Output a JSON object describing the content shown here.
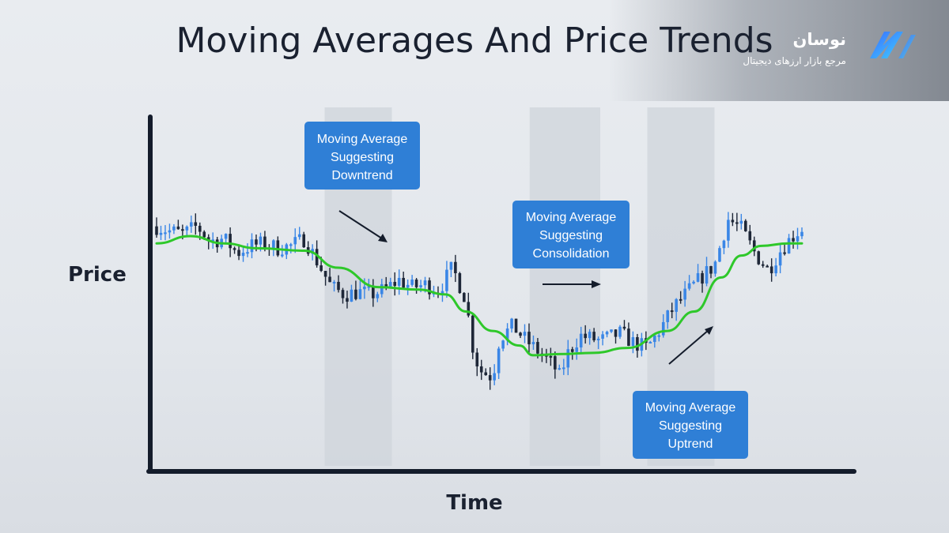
{
  "brand": {
    "name": "نوسان",
    "tagline": "مرجع بازار ارزهای دیجیتال",
    "logo": "nosan-logo"
  },
  "chart_data": {
    "type": "line",
    "title": "Moving Averages And Price Trends",
    "xlabel": "Time",
    "ylabel": "Price",
    "grid": false,
    "colors": {
      "moving_average": "#2ec82a",
      "bullish_candle": "#3a86e6",
      "bearish_candle": "#1e2738",
      "highlight_band": "#cfd4db",
      "annotation_box": "#2f7fd6"
    },
    "highlight_bands": [
      {
        "from": 0.25,
        "to": 0.35
      },
      {
        "from": 0.555,
        "to": 0.66
      },
      {
        "from": 0.73,
        "to": 0.83
      }
    ],
    "moving_average": [
      [
        0.0,
        0.72
      ],
      [
        0.05,
        0.75
      ],
      [
        0.1,
        0.72
      ],
      [
        0.15,
        0.7
      ],
      [
        0.22,
        0.69
      ],
      [
        0.27,
        0.62
      ],
      [
        0.33,
        0.54
      ],
      [
        0.39,
        0.53
      ],
      [
        0.43,
        0.51
      ],
      [
        0.46,
        0.44
      ],
      [
        0.5,
        0.36
      ],
      [
        0.54,
        0.3
      ],
      [
        0.56,
        0.26
      ],
      [
        0.6,
        0.265
      ],
      [
        0.65,
        0.27
      ],
      [
        0.7,
        0.29
      ],
      [
        0.76,
        0.36
      ],
      [
        0.8,
        0.44
      ],
      [
        0.84,
        0.58
      ],
      [
        0.87,
        0.67
      ],
      [
        0.9,
        0.71
      ],
      [
        0.94,
        0.72
      ],
      [
        0.96,
        0.72
      ]
    ],
    "price_path": [
      [
        0.0,
        0.79
      ],
      [
        0.02,
        0.77
      ],
      [
        0.04,
        0.76
      ],
      [
        0.06,
        0.79
      ],
      [
        0.08,
        0.73
      ],
      [
        0.1,
        0.74
      ],
      [
        0.12,
        0.68
      ],
      [
        0.14,
        0.71
      ],
      [
        0.16,
        0.72
      ],
      [
        0.18,
        0.7
      ],
      [
        0.2,
        0.71
      ],
      [
        0.22,
        0.74
      ],
      [
        0.24,
        0.64
      ],
      [
        0.26,
        0.54
      ],
      [
        0.28,
        0.51
      ],
      [
        0.3,
        0.52
      ],
      [
        0.32,
        0.51
      ],
      [
        0.34,
        0.53
      ],
      [
        0.36,
        0.57
      ],
      [
        0.38,
        0.54
      ],
      [
        0.4,
        0.55
      ],
      [
        0.42,
        0.53
      ],
      [
        0.44,
        0.62
      ],
      [
        0.46,
        0.49
      ],
      [
        0.47,
        0.3
      ],
      [
        0.48,
        0.2
      ],
      [
        0.5,
        0.17
      ],
      [
        0.51,
        0.33
      ],
      [
        0.53,
        0.38
      ],
      [
        0.55,
        0.32
      ],
      [
        0.57,
        0.27
      ],
      [
        0.59,
        0.22
      ],
      [
        0.6,
        0.17
      ],
      [
        0.61,
        0.26
      ],
      [
        0.63,
        0.34
      ],
      [
        0.66,
        0.32
      ],
      [
        0.69,
        0.35
      ],
      [
        0.71,
        0.31
      ],
      [
        0.73,
        0.29
      ],
      [
        0.75,
        0.37
      ],
      [
        0.77,
        0.46
      ],
      [
        0.79,
        0.52
      ],
      [
        0.81,
        0.58
      ],
      [
        0.83,
        0.63
      ],
      [
        0.85,
        0.82
      ],
      [
        0.87,
        0.78
      ],
      [
        0.89,
        0.68
      ],
      [
        0.91,
        0.61
      ],
      [
        0.93,
        0.7
      ],
      [
        0.95,
        0.76
      ],
      [
        0.96,
        0.78
      ]
    ],
    "annotations": [
      {
        "id": "downtrend",
        "lines": [
          "Moving Average",
          "Suggesting",
          "Downtrend"
        ]
      },
      {
        "id": "consolidation",
        "lines": [
          "Moving Average",
          "Suggesting",
          "Consolidation"
        ]
      },
      {
        "id": "uptrend",
        "lines": [
          "Moving Average",
          "Suggesting",
          "Uptrend"
        ]
      }
    ]
  }
}
